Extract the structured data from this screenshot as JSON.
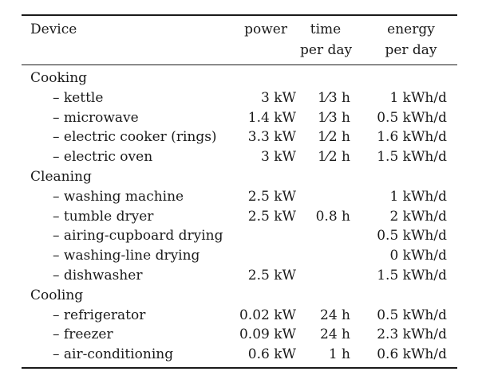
{
  "header": {
    "device": "Device",
    "power": "power",
    "time_line1": "time",
    "time_line2": "per day",
    "energy_line1": "energy",
    "energy_line2": "per day"
  },
  "rows": [
    {
      "label": "Cooking",
      "power": "",
      "time": "",
      "energy": "",
      "group": true
    },
    {
      "label": "– kettle",
      "power": "3 kW",
      "time": "1⁄3 h",
      "energy": "1 kWh/d"
    },
    {
      "label": "– microwave",
      "power": "1.4 kW",
      "time": "1⁄3 h",
      "energy": "0.5 kWh/d"
    },
    {
      "label": "– electric cooker (rings)",
      "power": "3.3 kW",
      "time": "1⁄2 h",
      "energy": "1.6 kWh/d"
    },
    {
      "label": "– electric oven",
      "power": "3 kW",
      "time": "1⁄2 h",
      "energy": "1.5 kWh/d"
    },
    {
      "label": "Cleaning",
      "power": "",
      "time": "",
      "energy": "",
      "group": true
    },
    {
      "label": "– washing machine",
      "power": "2.5 kW",
      "time": "",
      "energy": "1 kWh/d"
    },
    {
      "label": "– tumble dryer",
      "power": "2.5 kW",
      "time": "0.8 h",
      "energy": "2 kWh/d"
    },
    {
      "label": "– airing-cupboard drying",
      "power": "",
      "time": "",
      "energy": "0.5 kWh/d"
    },
    {
      "label": "– washing-line drying",
      "power": "",
      "time": "",
      "energy": "0 kWh/d"
    },
    {
      "label": "– dishwasher",
      "power": "2.5 kW",
      "time": "",
      "energy": "1.5 kWh/d"
    },
    {
      "label": "Cooling",
      "power": "",
      "time": "",
      "energy": "",
      "group": true
    },
    {
      "label": "– refrigerator",
      "power": "0.02 kW",
      "time": "24 h",
      "energy": "0.5 kWh/d"
    },
    {
      "label": "– freezer",
      "power": "0.09 kW",
      "time": "24 h",
      "energy": "2.3 kWh/d"
    },
    {
      "label": "– air-conditioning",
      "power": "0.6 kW",
      "time": "1 h",
      "energy": "0.6 kWh/d"
    }
  ]
}
